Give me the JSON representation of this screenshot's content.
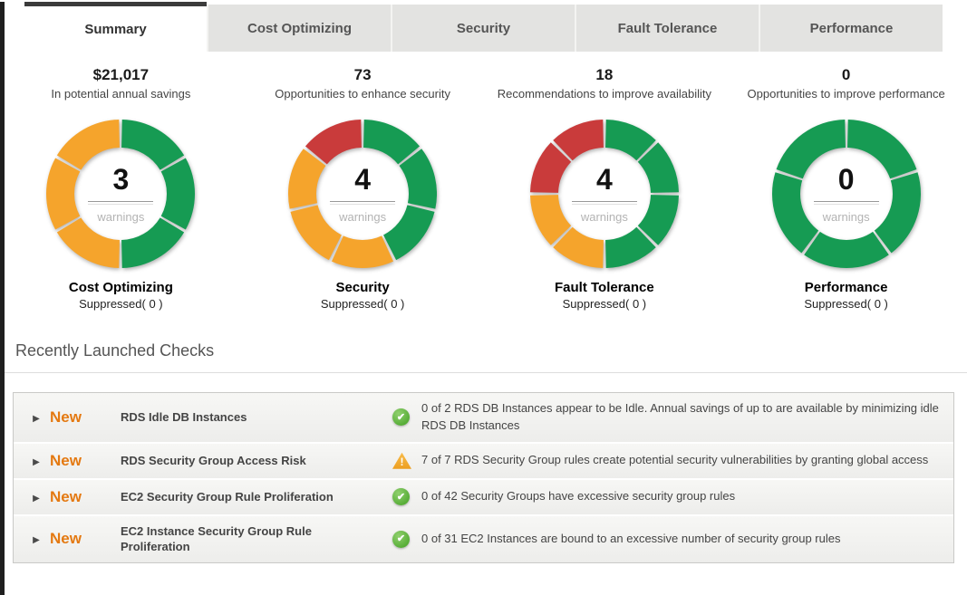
{
  "tabs": [
    {
      "label": "Summary",
      "active": true
    },
    {
      "label": "Cost Optimizing",
      "active": false
    },
    {
      "label": "Security",
      "active": false
    },
    {
      "label": "Fault Tolerance",
      "active": false
    },
    {
      "label": "Performance",
      "active": false
    }
  ],
  "stats": [
    {
      "value": "$21,017",
      "label": "In potential annual savings"
    },
    {
      "value": "73",
      "label": "Opportunities to enhance security"
    },
    {
      "value": "18",
      "label": "Recommendations to improve availability"
    },
    {
      "value": "0",
      "label": "Opportunities to improve performance"
    }
  ],
  "colors": {
    "ok_green": "#169b53",
    "warning_orange": "#f5a42c",
    "error_red": "#c93b3b",
    "new_badge_orange": "#e47911"
  },
  "chart_data": [
    {
      "type": "donut",
      "title": "Cost Optimizing",
      "warnings_count": "3",
      "warnings_label": "warnings",
      "suppressed_label": "Suppressed( 0 )",
      "segments": [
        {
          "status": "ok",
          "color": "#169b53",
          "count": 3
        },
        {
          "status": "warning",
          "color": "#f5a42c",
          "count": 3
        }
      ]
    },
    {
      "type": "donut",
      "title": "Security",
      "warnings_count": "4",
      "warnings_label": "warnings",
      "suppressed_label": "Suppressed( 0 )",
      "segments": [
        {
          "status": "ok",
          "color": "#169b53",
          "count": 3
        },
        {
          "status": "warning",
          "color": "#f5a42c",
          "count": 3
        },
        {
          "status": "error",
          "color": "#c93b3b",
          "count": 1
        }
      ]
    },
    {
      "type": "donut",
      "title": "Fault Tolerance",
      "warnings_count": "4",
      "warnings_label": "warnings",
      "suppressed_label": "Suppressed( 0 )",
      "segments": [
        {
          "status": "ok",
          "color": "#169b53",
          "count": 4
        },
        {
          "status": "warning",
          "color": "#f5a42c",
          "count": 2
        },
        {
          "status": "error",
          "color": "#c93b3b",
          "count": 2
        }
      ]
    },
    {
      "type": "donut",
      "title": "Performance",
      "warnings_count": "0",
      "warnings_label": "warnings",
      "suppressed_label": "Suppressed( 0 )",
      "segments": [
        {
          "status": "ok",
          "color": "#169b53",
          "count": 5
        }
      ]
    }
  ],
  "recent_checks": {
    "heading": "Recently Launched Checks",
    "rows": [
      {
        "badge": "New",
        "title": "RDS Idle DB Instances",
        "status": "ok",
        "description": "0 of 2 RDS DB Instances appear to be Idle. Annual savings of up to are available by minimizing idle RDS DB Instances"
      },
      {
        "badge": "New",
        "title": "RDS Security Group Access Risk",
        "status": "warning",
        "description": "7 of 7 RDS Security Group rules create potential security vulnerabilities by granting global access"
      },
      {
        "badge": "New",
        "title": "EC2 Security Group Rule Proliferation",
        "status": "ok",
        "description": "0 of 42 Security Groups have excessive security group rules"
      },
      {
        "badge": "New",
        "title": "EC2 Instance Security Group Rule Proliferation",
        "status": "ok",
        "description": "0 of 31 EC2 Instances are bound to an excessive number of security group rules"
      }
    ]
  }
}
